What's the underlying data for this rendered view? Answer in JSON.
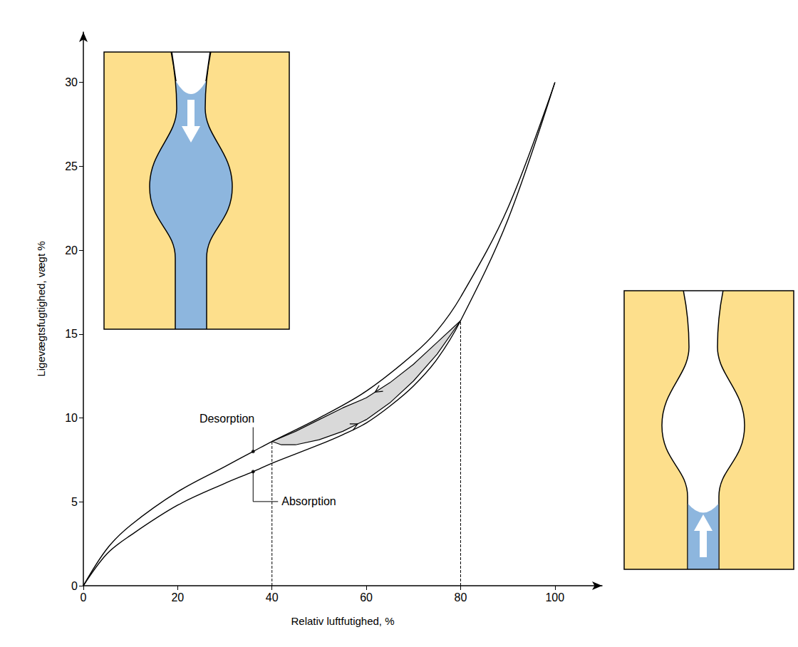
{
  "chart_data": {
    "type": "line",
    "x_label": "Relativ luftfutighed, %",
    "y_label": "Ligevægtsfugtighed, vægt %",
    "xlim": [
      0,
      110
    ],
    "ylim": [
      0,
      33
    ],
    "xticks": [
      0,
      20,
      40,
      60,
      80,
      100
    ],
    "yticks": [
      0,
      5,
      10,
      15,
      20,
      25,
      30
    ],
    "grid": false,
    "series": [
      {
        "color": "#000000",
        "line_style": "solid",
        "x": [
          0,
          5,
          10,
          20,
          30,
          36,
          40,
          50,
          60,
          70,
          75,
          80,
          90,
          100
        ],
        "values": [
          0,
          2.2,
          3.6,
          5.6,
          7.1,
          8.0,
          8.6,
          10.0,
          11.6,
          13.8,
          15.2,
          17.2,
          22.5,
          30
        ]
      },
      {
        "color": "#000000",
        "line_style": "solid",
        "x": [
          0,
          5,
          10,
          20,
          30,
          36,
          40,
          50,
          55,
          60,
          65,
          70,
          75,
          80,
          90,
          100
        ],
        "values": [
          0,
          1.9,
          3.0,
          4.8,
          6.1,
          6.8,
          7.3,
          8.4,
          9.0,
          9.7,
          10.7,
          11.9,
          13.5,
          15.8,
          21.8,
          30
        ]
      }
    ],
    "scanning_loop": {
      "color": "#d9d9d9",
      "desorption": {
        "color": "#000000",
        "x": [
          80,
          75,
          70,
          65,
          60,
          55,
          50,
          45,
          40
        ],
        "values": [
          15.8,
          14.5,
          13.2,
          12.1,
          11.2,
          10.6,
          9.9,
          9.2,
          8.6
        ]
      },
      "absorption": {
        "color": "#000000",
        "x": [
          40,
          42,
          45,
          50,
          55,
          60,
          65,
          70,
          75,
          80
        ],
        "values": [
          8.6,
          8.4,
          8.4,
          8.7,
          9.2,
          9.9,
          10.9,
          12.2,
          13.8,
          15.8
        ]
      }
    },
    "reference_lines": [
      {
        "x": 40,
        "y_end": 8.6,
        "line_style": "dashed"
      },
      {
        "x": 80,
        "y_end": 15.8,
        "line_style": "dashed"
      }
    ],
    "annotations": [
      {
        "text": "Desorption",
        "x": 36,
        "y": 8.0
      },
      {
        "text": "Absorption",
        "x": 36,
        "y": 6.8
      }
    ]
  }
}
